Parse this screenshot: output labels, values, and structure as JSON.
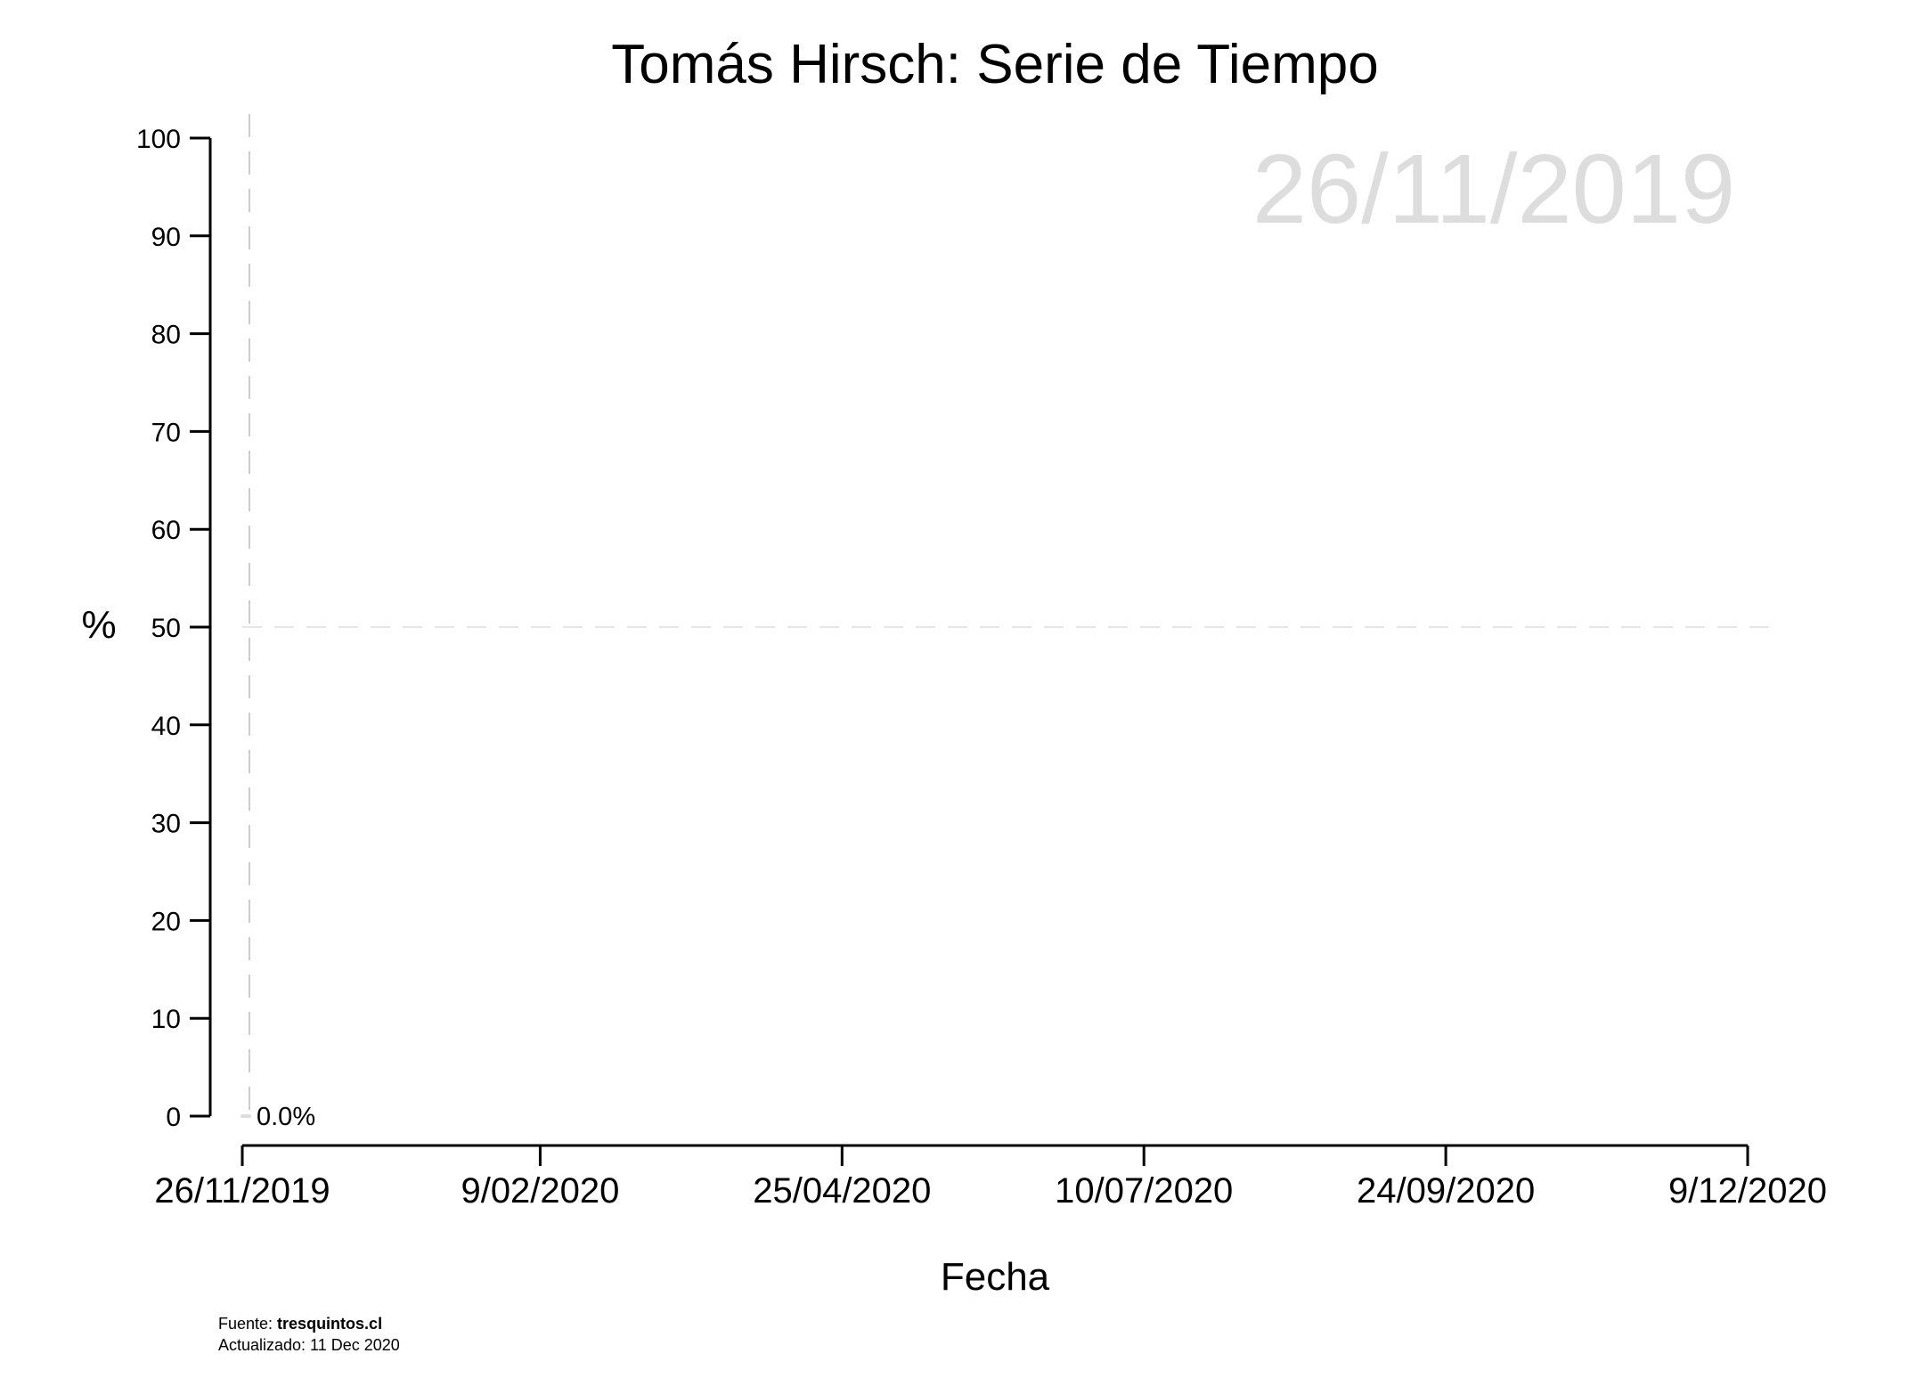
{
  "chart_data": {
    "type": "line",
    "title": "Tomás Hirsch: Serie de Tiempo",
    "xlabel": "Fecha",
    "ylabel": "%",
    "date_watermark": "26/11/2019",
    "xlim": [
      "2019-11-26",
      "2020-12-09"
    ],
    "ylim": [
      0,
      100
    ],
    "x_ticks": [
      {
        "date": "2019-11-26",
        "label": "26/11/2019"
      },
      {
        "date": "2020-02-09",
        "label": "9/02/2020"
      },
      {
        "date": "2020-04-25",
        "label": "25/04/2020"
      },
      {
        "date": "2020-07-10",
        "label": "10/07/2020"
      },
      {
        "date": "2020-09-24",
        "label": "24/09/2020"
      },
      {
        "date": "2020-12-09",
        "label": "9/12/2020"
      }
    ],
    "y_ticks": [
      0,
      10,
      20,
      30,
      40,
      50,
      60,
      70,
      80,
      90,
      100
    ],
    "reference_lines": {
      "horizontal_y": 50,
      "vertical_date": "2019-11-26"
    },
    "grid": false,
    "series": [
      {
        "points": [
          {
            "x": "2019-11-26",
            "y": 0.0
          }
        ],
        "last_label": "0.0%",
        "color": "#dddddd"
      }
    ],
    "footer": {
      "source_prefix": "Fuente: ",
      "source_name": "tresquintos.cl",
      "updated": "Actualizado: 11 Dec 2020"
    }
  }
}
